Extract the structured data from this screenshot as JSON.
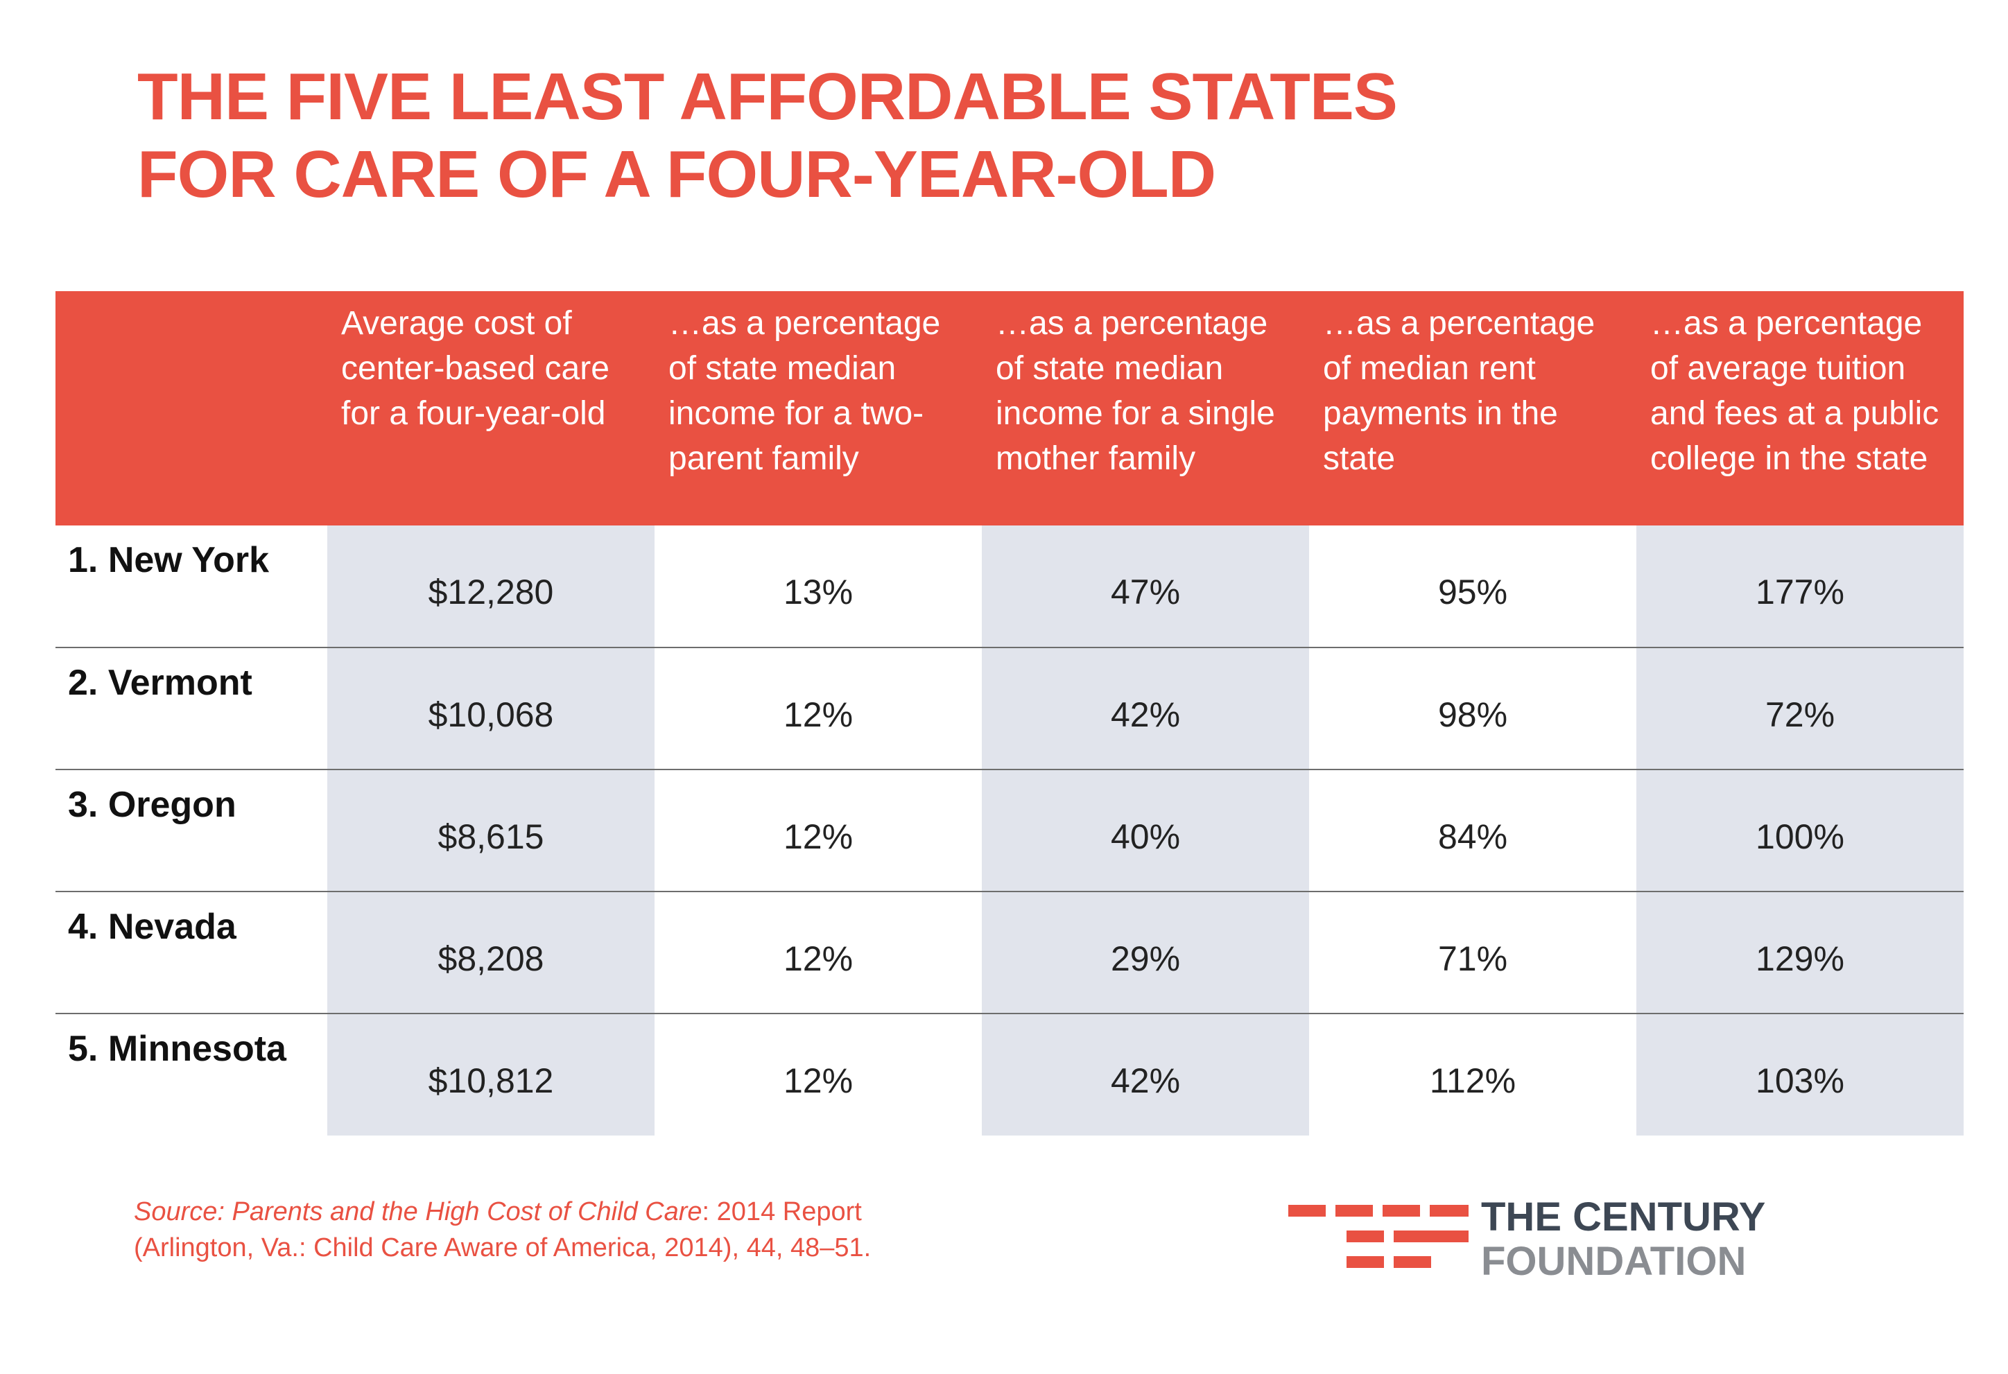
{
  "title": {
    "line1": "THE FIVE LEAST AFFORDABLE STATES",
    "line2": "FOR CARE OF A FOUR-YEAR-OLD"
  },
  "table": {
    "headers": [
      "",
      "Average cost of center-based care for a four-year-old",
      "…as a percentage of state median income for a two-parent family",
      "…as a percentage of state median income for a single mother family",
      "…as a percentage of median rent payments in the state",
      "…as a percentage of average tuition and fees at a public college in the state"
    ],
    "rows": [
      {
        "state": "1. New York",
        "cells": [
          "$12,280",
          "13%",
          "47%",
          "95%",
          "177%"
        ]
      },
      {
        "state": "2. Vermont",
        "cells": [
          "$10,068",
          "12%",
          "42%",
          "98%",
          "72%"
        ]
      },
      {
        "state": "3. Oregon",
        "cells": [
          "$8,615",
          "12%",
          "40%",
          "84%",
          "100%"
        ]
      },
      {
        "state": "4. Nevada",
        "cells": [
          "$8,208",
          "12%",
          "29%",
          "71%",
          "129%"
        ]
      },
      {
        "state": "5. Minnesota",
        "cells": [
          "$10,812",
          "12%",
          "42%",
          "112%",
          "103%"
        ]
      }
    ]
  },
  "source": {
    "italic": "Source: Parents and the High Cost of Child Care",
    "rest_line1": ": 2014 Report",
    "line2": "(Arlington, Va.: Child Care Aware of America, 2014), 44, 48–51."
  },
  "logo": {
    "line1": "THE CENTURY",
    "line2": "FOUNDATION"
  },
  "colors": {
    "accent": "#e95142",
    "shade": "#e1e4ec",
    "logo_dark": "#3d4754",
    "logo_gray": "#8a8d92"
  },
  "chart_data": {
    "type": "table",
    "title": "THE FIVE LEAST AFFORDABLE STATES FOR CARE OF A FOUR-YEAR-OLD",
    "columns": [
      "Average cost of center-based care for a four-year-old",
      "…as a percentage of state median income for a two-parent family",
      "…as a percentage of state median income for a single mother family",
      "…as a percentage of median rent payments in the state",
      "…as a percentage of average tuition and fees at a public college in the state"
    ],
    "categories": [
      "New York",
      "Vermont",
      "Oregon",
      "Nevada",
      "Minnesota"
    ],
    "series": [
      {
        "name": "Average cost of center-based care ($)",
        "values": [
          12280,
          10068,
          8615,
          8208,
          10812
        ]
      },
      {
        "name": "% of two-parent family median income",
        "values": [
          13,
          12,
          12,
          12,
          12
        ]
      },
      {
        "name": "% of single mother family median income",
        "values": [
          47,
          42,
          40,
          29,
          42
        ]
      },
      {
        "name": "% of median rent payments",
        "values": [
          95,
          98,
          84,
          71,
          112
        ]
      },
      {
        "name": "% of public college tuition and fees",
        "values": [
          177,
          72,
          100,
          129,
          103
        ]
      }
    ]
  }
}
